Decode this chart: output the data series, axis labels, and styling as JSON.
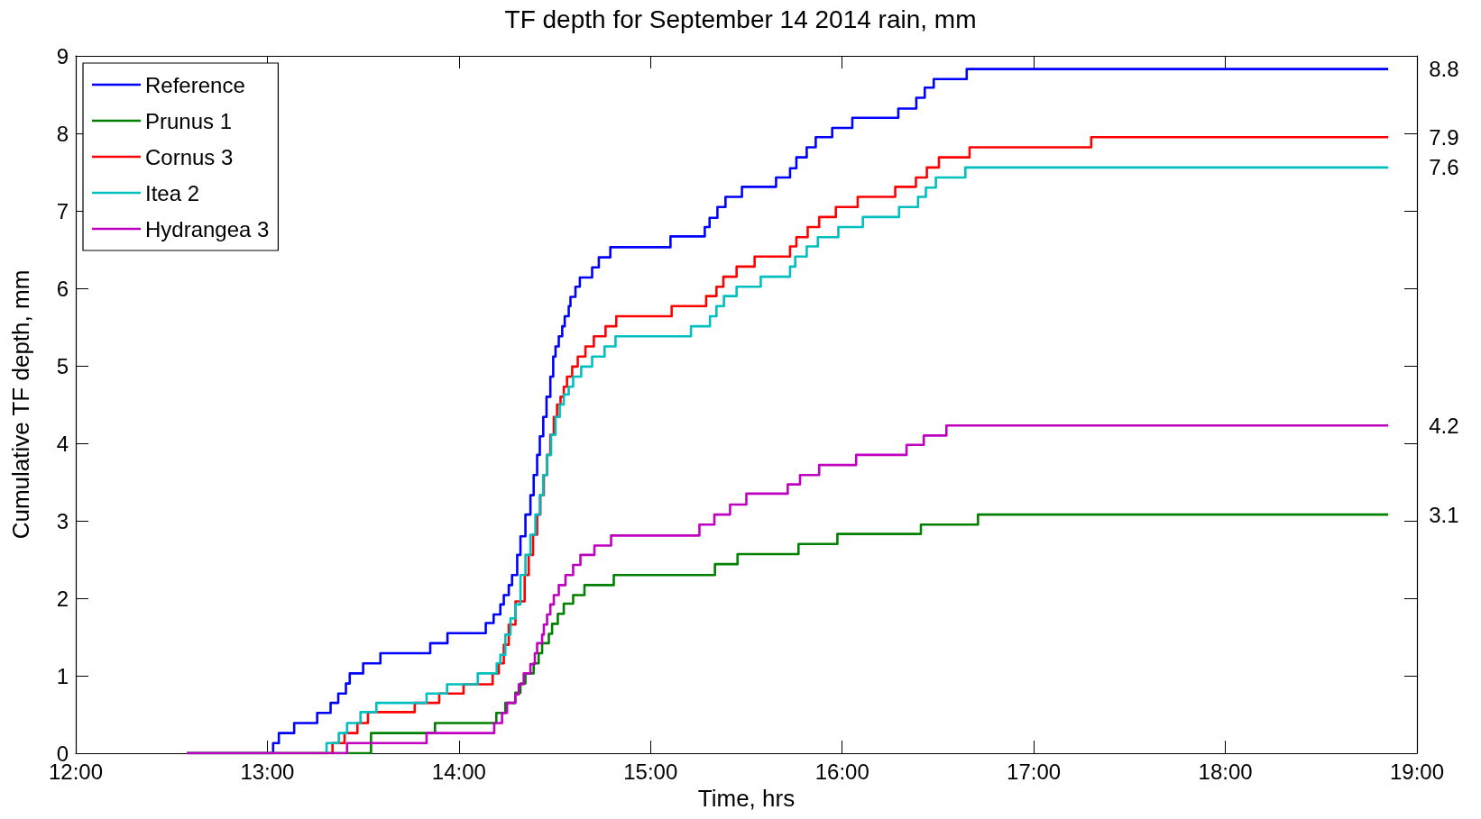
{
  "chart_data": {
    "type": "step",
    "title": "TF depth for September 14 2014 rain, mm",
    "xlabel": "Time, hrs",
    "ylabel": "Cumulative TF depth, mm",
    "xlim": [
      12,
      19
    ],
    "xticks": [
      {
        "value": 12,
        "label": "12:00"
      },
      {
        "value": 13,
        "label": "13:00"
      },
      {
        "value": 14,
        "label": "14:00"
      },
      {
        "value": 15,
        "label": "15:00"
      },
      {
        "value": 16,
        "label": "16:00"
      },
      {
        "value": 17,
        "label": "17:00"
      },
      {
        "value": 18,
        "label": "18:00"
      },
      {
        "value": 19,
        "label": "19:00"
      }
    ],
    "ylim": [
      0,
      9
    ],
    "yticks": [
      0,
      1,
      2,
      3,
      4,
      5,
      6,
      7,
      8,
      9
    ],
    "grid": false,
    "legend": "top left",
    "marker": "none",
    "line_style": "solid",
    "series": [
      {
        "name": "Reference",
        "color": "#0000ff",
        "x": [
          12.58,
          13.03,
          13.06,
          13.14,
          13.26,
          13.33,
          13.37,
          13.41,
          13.43,
          13.5,
          13.59,
          13.85,
          13.94,
          14.14,
          14.181,
          14.216,
          14.234,
          14.26,
          14.277,
          14.304,
          14.321,
          14.347,
          14.373,
          14.39,
          14.408,
          14.422,
          14.44,
          14.457,
          14.477,
          14.492,
          14.504,
          14.521,
          14.539,
          14.552,
          14.573,
          14.582,
          14.608,
          14.631,
          14.695,
          14.73,
          14.79,
          15.104,
          15.283,
          15.308,
          15.349,
          15.391,
          15.477,
          15.655,
          15.728,
          15.761,
          15.815,
          15.862,
          15.948,
          16.053,
          16.293,
          16.387,
          16.431,
          16.478,
          16.65,
          18.85
        ],
        "values": [
          0,
          0.13,
          0.26,
          0.39,
          0.52,
          0.65,
          0.77,
          0.9,
          1.03,
          1.16,
          1.29,
          1.42,
          1.55,
          1.68,
          1.79,
          1.92,
          2.04,
          2.17,
          2.3,
          2.56,
          2.8,
          3.08,
          3.33,
          3.59,
          3.85,
          4.09,
          4.34,
          4.6,
          4.86,
          5.12,
          5.25,
          5.38,
          5.51,
          5.64,
          5.77,
          5.89,
          6.02,
          6.14,
          6.27,
          6.4,
          6.53,
          6.67,
          6.79,
          6.91,
          7.05,
          7.18,
          7.31,
          7.43,
          7.55,
          7.69,
          7.82,
          7.95,
          8.07,
          8.2,
          8.32,
          8.46,
          8.59,
          8.7,
          8.83,
          8.83
        ],
        "value_labels": [
          null,
          null,
          null,
          null,
          null,
          null,
          null,
          null,
          null,
          null,
          null,
          null,
          null,
          null,
          null,
          null,
          null,
          null,
          null,
          null,
          null,
          null,
          null,
          null,
          null,
          null,
          null,
          null,
          null,
          null,
          null,
          null,
          null,
          null,
          null,
          null,
          null,
          null,
          null,
          null,
          null,
          null,
          null,
          null,
          null,
          null,
          null,
          null,
          null,
          null,
          null,
          null,
          null,
          null,
          null,
          null,
          null,
          null,
          null,
          "8.8"
        ]
      },
      {
        "name": "Prunus 1",
        "color": "#008000",
        "x": [
          12.58,
          13.541,
          13.875,
          14.195,
          14.242,
          14.294,
          14.321,
          14.347,
          14.39,
          14.416,
          14.434,
          14.469,
          14.486,
          14.516,
          14.547,
          14.596,
          14.655,
          14.808,
          15.336,
          15.454,
          15.772,
          15.975,
          16.411,
          16.709,
          18.85
        ],
        "values": [
          0,
          0.26,
          0.39,
          0.52,
          0.65,
          0.78,
          0.9,
          1.03,
          1.16,
          1.29,
          1.42,
          1.54,
          1.67,
          1.8,
          1.93,
          2.04,
          2.17,
          2.3,
          2.44,
          2.57,
          2.7,
          2.83,
          2.95,
          3.08,
          3.08
        ],
        "value_labels": [
          null,
          null,
          null,
          null,
          null,
          null,
          null,
          null,
          null,
          null,
          null,
          null,
          null,
          null,
          null,
          null,
          null,
          null,
          null,
          null,
          null,
          null,
          null,
          null,
          "3.1"
        ]
      },
      {
        "name": "Cornus 3",
        "color": "#ff0000",
        "x": [
          12.58,
          13.34,
          13.403,
          13.47,
          13.525,
          13.769,
          13.897,
          14.024,
          14.176,
          14.208,
          14.234,
          14.26,
          14.295,
          14.343,
          14.364,
          14.387,
          14.408,
          14.425,
          14.443,
          14.46,
          14.477,
          14.495,
          14.512,
          14.53,
          14.547,
          14.564,
          14.591,
          14.62,
          14.66,
          14.704,
          14.765,
          14.821,
          15.11,
          15.29,
          15.344,
          15.38,
          15.449,
          15.543,
          15.728,
          15.761,
          15.82,
          15.88,
          15.967,
          16.081,
          16.277,
          16.385,
          16.442,
          16.505,
          16.665,
          17.3,
          18.85
        ],
        "values": [
          0,
          0.13,
          0.26,
          0.39,
          0.53,
          0.65,
          0.77,
          0.89,
          1.03,
          1.16,
          1.4,
          1.66,
          1.96,
          2.3,
          2.56,
          2.82,
          3.08,
          3.33,
          3.59,
          3.85,
          4.11,
          4.34,
          4.5,
          4.6,
          4.73,
          4.86,
          4.99,
          5.12,
          5.25,
          5.38,
          5.51,
          5.64,
          5.77,
          5.9,
          6.02,
          6.15,
          6.28,
          6.41,
          6.54,
          6.66,
          6.79,
          6.92,
          7.05,
          7.18,
          7.31,
          7.43,
          7.56,
          7.69,
          7.82,
          7.95,
          7.95
        ],
        "value_labels": [
          null,
          null,
          null,
          null,
          null,
          null,
          null,
          null,
          null,
          null,
          null,
          null,
          null,
          null,
          null,
          null,
          null,
          null,
          null,
          null,
          null,
          null,
          null,
          null,
          null,
          null,
          null,
          null,
          null,
          null,
          null,
          null,
          null,
          null,
          null,
          null,
          null,
          null,
          null,
          null,
          null,
          null,
          null,
          null,
          null,
          null,
          null,
          null,
          null,
          null,
          "7.9"
        ]
      },
      {
        "name": "Itea 2",
        "color": "#00bfbf",
        "x": [
          12.58,
          13.309,
          13.373,
          13.416,
          13.486,
          13.569,
          13.831,
          13.938,
          14.098,
          14.197,
          14.216,
          14.242,
          14.269,
          14.295,
          14.321,
          14.347,
          14.373,
          14.399,
          14.422,
          14.44,
          14.46,
          14.481,
          14.504,
          14.526,
          14.547,
          14.573,
          14.596,
          14.638,
          14.695,
          14.76,
          14.817,
          15.211,
          15.31,
          15.344,
          15.383,
          15.449,
          15.575,
          15.728,
          15.755,
          15.815,
          15.873,
          15.98,
          16.108,
          16.297,
          16.396,
          16.437,
          16.489,
          16.643,
          18.85
        ],
        "values": [
          0,
          0.13,
          0.26,
          0.39,
          0.53,
          0.65,
          0.77,
          0.89,
          1.03,
          1.16,
          1.27,
          1.53,
          1.74,
          1.92,
          2.3,
          2.56,
          2.82,
          3.08,
          3.33,
          3.59,
          3.85,
          4.11,
          4.34,
          4.5,
          4.63,
          4.73,
          4.86,
          4.99,
          5.12,
          5.25,
          5.38,
          5.51,
          5.64,
          5.77,
          5.9,
          6.02,
          6.15,
          6.28,
          6.41,
          6.54,
          6.66,
          6.79,
          6.92,
          7.05,
          7.18,
          7.3,
          7.43,
          7.56,
          7.56
        ],
        "value_labels": [
          null,
          null,
          null,
          null,
          null,
          null,
          null,
          null,
          null,
          null,
          null,
          null,
          null,
          null,
          null,
          null,
          null,
          null,
          null,
          null,
          null,
          null,
          null,
          null,
          null,
          null,
          null,
          null,
          null,
          null,
          null,
          null,
          null,
          null,
          null,
          null,
          null,
          null,
          null,
          null,
          null,
          null,
          null,
          null,
          null,
          null,
          null,
          null,
          "7.6"
        ]
      },
      {
        "name": "Hydrangea 3",
        "color": "#bf00bf",
        "x": [
          12.58,
          13.416,
          13.831,
          14.184,
          14.225,
          14.251,
          14.294,
          14.312,
          14.338,
          14.373,
          14.396,
          14.408,
          14.434,
          14.443,
          14.46,
          14.477,
          14.495,
          14.521,
          14.556,
          14.596,
          14.634,
          14.707,
          14.794,
          15.255,
          15.333,
          15.415,
          15.5,
          15.716,
          15.78,
          15.88,
          16.073,
          16.336,
          16.426,
          16.544,
          18.85
        ],
        "values": [
          0,
          0.13,
          0.26,
          0.39,
          0.52,
          0.65,
          0.76,
          0.89,
          1.03,
          1.15,
          1.29,
          1.42,
          1.53,
          1.66,
          1.79,
          1.92,
          2.04,
          2.17,
          2.3,
          2.43,
          2.56,
          2.68,
          2.81,
          2.95,
          3.08,
          3.21,
          3.35,
          3.47,
          3.59,
          3.72,
          3.85,
          3.98,
          4.1,
          4.23,
          4.23
        ],
        "value_labels": [
          null,
          null,
          null,
          null,
          null,
          null,
          null,
          null,
          null,
          null,
          null,
          null,
          null,
          null,
          null,
          null,
          null,
          null,
          null,
          null,
          null,
          null,
          null,
          null,
          null,
          null,
          null,
          null,
          null,
          null,
          null,
          null,
          null,
          null,
          "4.2"
        ]
      }
    ]
  }
}
